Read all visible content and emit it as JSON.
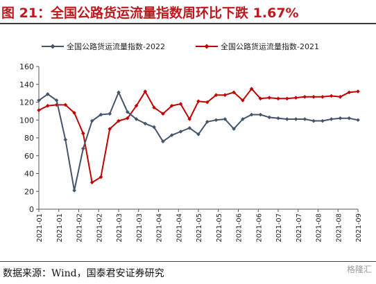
{
  "header": {
    "title": "图 21：全国公路货运流量指数周环比下跌 1.67%"
  },
  "footer": {
    "source": "数据来源：Wind，国泰君安证券研究",
    "watermark": "格隆汇"
  },
  "chart_data": {
    "type": "line",
    "ylim": [
      0,
      160
    ],
    "yticks": [
      0,
      20,
      40,
      60,
      80,
      100,
      120,
      140,
      160
    ],
    "xticks": [
      "2021-01",
      "2021-01",
      "2021-02",
      "2021-02",
      "2021-03",
      "2021-03",
      "2021-04",
      "2021-04",
      "2021-05",
      "2021-05",
      "2021-06",
      "2021-06",
      "2021-07",
      "2021-07",
      "2021-08",
      "2021-08",
      "2021-09"
    ],
    "legend_position": "top",
    "grid": false,
    "series": [
      {
        "name": "全国公路货运流量指数-2022",
        "color": "#44546a",
        "marker": "diamond",
        "values": [
          122,
          129,
          122,
          78,
          21,
          68,
          99,
          106,
          107,
          131,
          109,
          101,
          96,
          92,
          76,
          83,
          87,
          91,
          84,
          98,
          100,
          101,
          90,
          101,
          106,
          106,
          103,
          102,
          101,
          101,
          101,
          99,
          99,
          101,
          102,
          102,
          100
        ]
      },
      {
        "name": "全国公路货运流量指数-2021",
        "color": "#c00000",
        "marker": "diamond",
        "values": [
          111,
          116,
          117,
          117,
          108,
          85,
          30,
          36,
          90,
          99,
          102,
          116,
          132,
          114,
          107,
          116,
          118,
          101,
          121,
          120,
          128,
          128,
          131,
          122,
          135,
          124,
          125,
          124,
          124,
          125,
          126,
          126,
          126,
          127,
          126,
          131,
          132
        ]
      }
    ]
  }
}
